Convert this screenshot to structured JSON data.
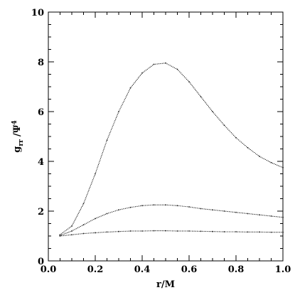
{
  "chart_data": {
    "type": "scatter",
    "xlabel": "r/M",
    "ylabel_main": "g",
    "ylabel_sub": "rr",
    "ylabel_tail": "/Ψ",
    "ylabel_sup": "4",
    "xlim": [
      0.0,
      1.0
    ],
    "ylim": [
      0,
      10
    ],
    "x_ticks": [
      0.0,
      0.2,
      0.4,
      0.6,
      0.8,
      1.0
    ],
    "x_tick_labels": [
      "0.0",
      "0.2",
      "0.4",
      "0.6",
      "0.8",
      "1.0"
    ],
    "y_ticks": [
      0,
      2,
      4,
      6,
      8,
      10
    ],
    "y_tick_labels": [
      "0",
      "2",
      "4",
      "6",
      "8",
      "10"
    ],
    "grid": false,
    "series": [
      {
        "points": [
          [
            0.05,
            1.05
          ],
          [
            0.1,
            1.4
          ],
          [
            0.15,
            2.3
          ],
          [
            0.2,
            3.5
          ],
          [
            0.25,
            4.85
          ],
          [
            0.3,
            6.0
          ],
          [
            0.35,
            6.95
          ],
          [
            0.4,
            7.55
          ],
          [
            0.45,
            7.9
          ],
          [
            0.5,
            7.95
          ],
          [
            0.55,
            7.7
          ],
          [
            0.6,
            7.2
          ],
          [
            0.65,
            6.6
          ],
          [
            0.7,
            6.0
          ],
          [
            0.75,
            5.45
          ],
          [
            0.8,
            4.95
          ],
          [
            0.85,
            4.55
          ],
          [
            0.9,
            4.2
          ],
          [
            0.95,
            3.95
          ],
          [
            1.0,
            3.75
          ]
        ]
      },
      {
        "points": [
          [
            0.05,
            1.02
          ],
          [
            0.1,
            1.2
          ],
          [
            0.15,
            1.45
          ],
          [
            0.2,
            1.7
          ],
          [
            0.25,
            1.9
          ],
          [
            0.3,
            2.05
          ],
          [
            0.35,
            2.15
          ],
          [
            0.4,
            2.22
          ],
          [
            0.45,
            2.25
          ],
          [
            0.5,
            2.25
          ],
          [
            0.55,
            2.22
          ],
          [
            0.6,
            2.17
          ],
          [
            0.65,
            2.1
          ],
          [
            0.7,
            2.05
          ],
          [
            0.75,
            2.0
          ],
          [
            0.8,
            1.95
          ],
          [
            0.85,
            1.9
          ],
          [
            0.9,
            1.85
          ],
          [
            0.95,
            1.8
          ],
          [
            1.0,
            1.75
          ]
        ]
      },
      {
        "points": [
          [
            0.05,
            1.0
          ],
          [
            0.1,
            1.05
          ],
          [
            0.15,
            1.1
          ],
          [
            0.2,
            1.13
          ],
          [
            0.25,
            1.16
          ],
          [
            0.3,
            1.18
          ],
          [
            0.35,
            1.2
          ],
          [
            0.4,
            1.2
          ],
          [
            0.45,
            1.21
          ],
          [
            0.5,
            1.21
          ],
          [
            0.55,
            1.2
          ],
          [
            0.6,
            1.2
          ],
          [
            0.65,
            1.19
          ],
          [
            0.7,
            1.18
          ],
          [
            0.75,
            1.17
          ],
          [
            0.8,
            1.17
          ],
          [
            0.85,
            1.16
          ],
          [
            0.9,
            1.16
          ],
          [
            0.95,
            1.15
          ],
          [
            1.0,
            1.15
          ]
        ]
      }
    ]
  }
}
